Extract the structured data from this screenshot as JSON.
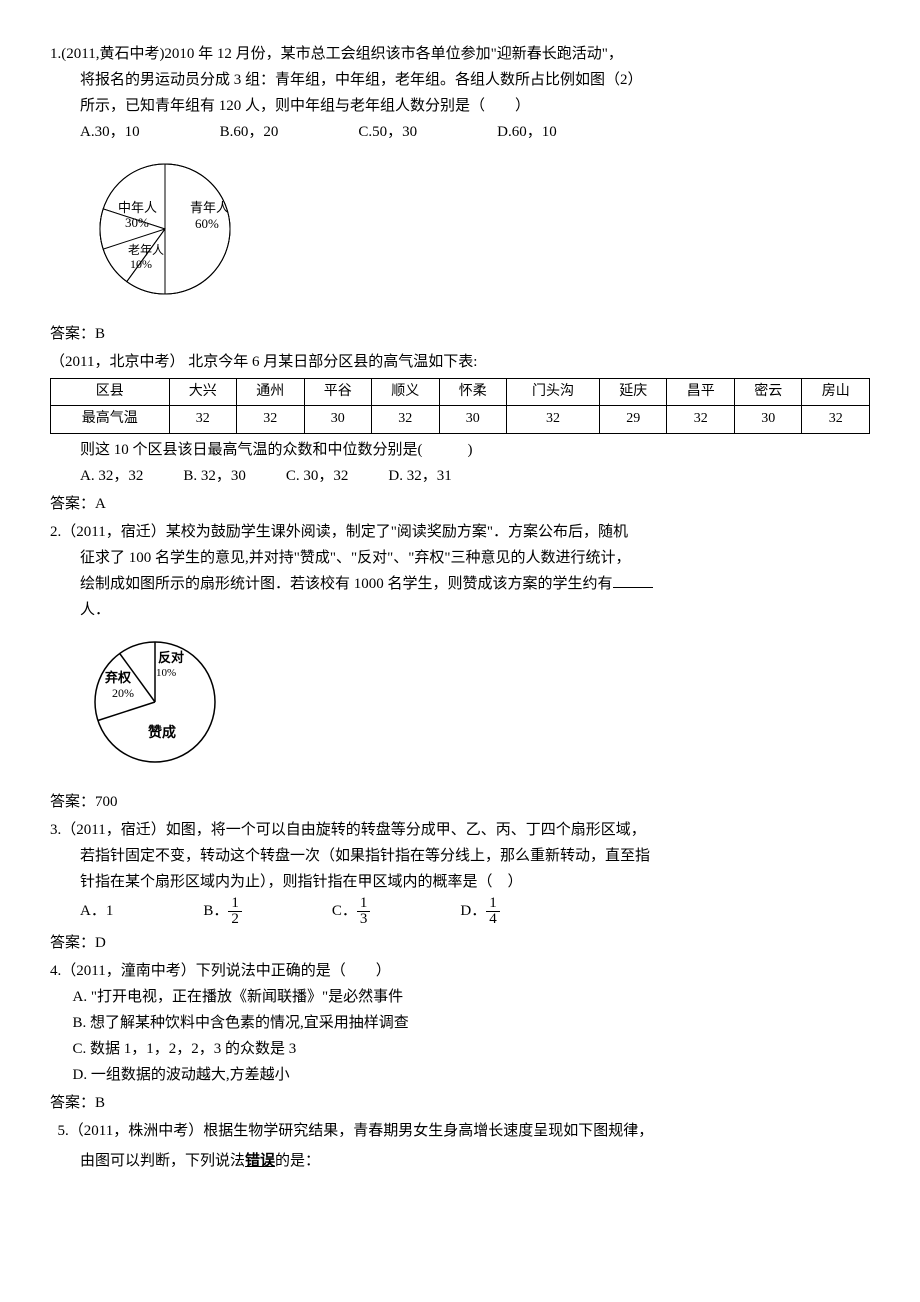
{
  "q1": {
    "text": "1.(2011,黄石中考)2010 年 12 月份，某市总工会组织该市各单位参加\"迎新春长跑活动\"，",
    "line2": "将报名的男运动员分成 3 组：青年组，中年组，老年组。各组人数所占比例如图（2）",
    "line3": "所示，已知青年组有 120 人，则中年组与老年组人数分别是（　　）",
    "optA": "A.30，10",
    "optB": "B.60，20",
    "optC": "C.50，30",
    "optD": "D.60，10",
    "pie": {
      "slices": [
        {
          "label": "青年人",
          "sub": "60%",
          "value": 60,
          "color": "#ffffff"
        },
        {
          "label": "中年人",
          "sub": "30%",
          "value": 30,
          "color": "#ffffff"
        },
        {
          "label": "老年人",
          "sub": "10%",
          "value": 10,
          "color": "#ffffff"
        }
      ],
      "stroke": "#000000",
      "size": 150
    },
    "answer": "答案：B"
  },
  "beijing": {
    "intro": "（2011，北京中考）  北京今年 6 月某日部分区县的高气温如下表:",
    "header": "区县",
    "row_label": "最高气温",
    "districts": [
      "大兴",
      "通州",
      "平谷",
      "顺义",
      "怀柔",
      "门头沟",
      "延庆",
      "昌平",
      "密云",
      "房山"
    ],
    "temps": [
      "32",
      "32",
      "30",
      "32",
      "30",
      "32",
      "29",
      "32",
      "30",
      "32"
    ],
    "qtext": "则这 10 个区县该日最高气温的众数和中位数分别是(　　　)",
    "optA": "A. 32，32",
    "optB": "B. 32，30",
    "optC": "C. 30，32",
    "optD": "D. 32，31",
    "answer": "答案：A"
  },
  "q2": {
    "l1": "2.（2011，宿迁）某校为鼓励学生课外阅读，制定了\"阅读奖励方案\"．方案公布后，随机",
    "l2": "征求了 100 名学生的意见,并对持\"赞成\"、\"反对\"、\"弃权\"三种意见的人数进行统计，",
    "l3": "绘制成如图所示的扇形统计图．若该校有 1000 名学生，则赞成该方案的学生约有",
    "l4": "人．",
    "pie": {
      "slices": [
        {
          "label": "反对",
          "sub": "10%",
          "value": 10
        },
        {
          "label": "弃权",
          "sub": "20%",
          "value": 20
        },
        {
          "label": "赞成",
          "sub": "",
          "value": 70
        }
      ],
      "stroke": "#000000",
      "size": 140
    },
    "answer": "答案：700"
  },
  "q3": {
    "l1": "3.（2011，宿迁）如图，将一个可以自由旋转的转盘等分成甲、乙、丙、丁四个扇形区域，",
    "l2": "若指针固定不变，转动这个转盘一次（如果指针指在等分线上，那么重新转动，直至指",
    "l3": "针指在某个扇形区域内为止），则指针指在甲区域内的概率是（　）",
    "optA_label": "A．",
    "optA_val": "1",
    "optB_label": "B．",
    "optB_num": "1",
    "optB_den": "2",
    "optC_label": "C．",
    "optC_num": "1",
    "optC_den": "3",
    "optD_label": "D．",
    "optD_num": "1",
    "optD_den": "4",
    "answer": "答案：D"
  },
  "q4": {
    "l1": "4.（2011，潼南中考）下列说法中正确的是（　　）",
    "a": "A. \"打开电视，正在播放《新闻联播》\"是必然事件",
    "b": "B. 想了解某种饮料中含色素的情况,宜采用抽样调查",
    "c": "C. 数据 1，1，2，2，3 的众数是 3",
    "d": "D. 一组数据的波动越大,方差越小",
    "answer": "答案：B"
  },
  "q5": {
    "l1": "5.（2011，株洲中考）根据生物学研究结果，青春期男女生身高增长速度呈现如下图规律，",
    "l2_pre": "由图可以判断，下列说法",
    "l2_bold": "错误",
    "l2_post": "的是："
  }
}
